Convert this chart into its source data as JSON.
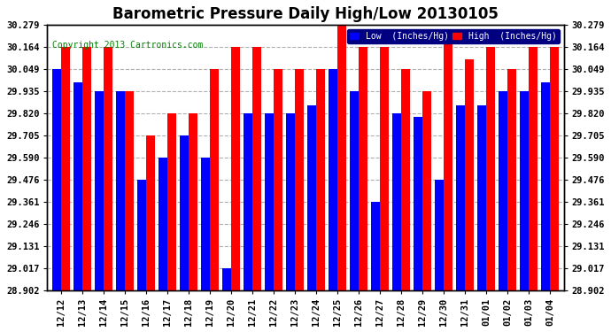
{
  "title": "Barometric Pressure Daily High/Low 20130105",
  "copyright": "Copyright 2013 Cartronics.com",
  "categories": [
    "12/12",
    "12/13",
    "12/14",
    "12/15",
    "12/16",
    "12/17",
    "12/18",
    "12/19",
    "12/20",
    "12/21",
    "12/22",
    "12/23",
    "12/24",
    "12/25",
    "12/26",
    "12/27",
    "12/28",
    "12/29",
    "12/30",
    "12/31",
    "01/01",
    "01/02",
    "01/03",
    "01/04"
  ],
  "low_values": [
    30.049,
    29.98,
    29.935,
    29.935,
    29.476,
    29.59,
    29.705,
    29.59,
    29.017,
    29.82,
    29.82,
    29.82,
    29.862,
    30.049,
    29.935,
    29.361,
    29.82,
    29.8,
    29.476,
    29.862,
    29.862,
    29.935,
    29.935,
    29.98
  ],
  "high_values": [
    30.164,
    30.164,
    30.164,
    29.935,
    29.705,
    29.82,
    29.82,
    30.049,
    30.164,
    30.164,
    30.049,
    30.049,
    30.049,
    30.279,
    30.164,
    30.164,
    30.049,
    29.935,
    30.22,
    30.1,
    30.164,
    30.049,
    30.164,
    30.164
  ],
  "low_color": "#0000ff",
  "high_color": "#ff0000",
  "bg_color": "#ffffff",
  "plot_bg_color": "#ffffff",
  "grid_color": "#b0b0b0",
  "ylim": [
    28.902,
    30.279
  ],
  "yticks": [
    28.902,
    29.017,
    29.131,
    29.246,
    29.361,
    29.476,
    29.59,
    29.705,
    29.82,
    29.935,
    30.049,
    30.164,
    30.279
  ],
  "legend_low_label": "Low  (Inches/Hg)",
  "legend_high_label": "High  (Inches/Hg)",
  "title_fontsize": 12,
  "copyright_fontsize": 7,
  "tick_fontsize": 7.5,
  "bar_width": 0.42
}
